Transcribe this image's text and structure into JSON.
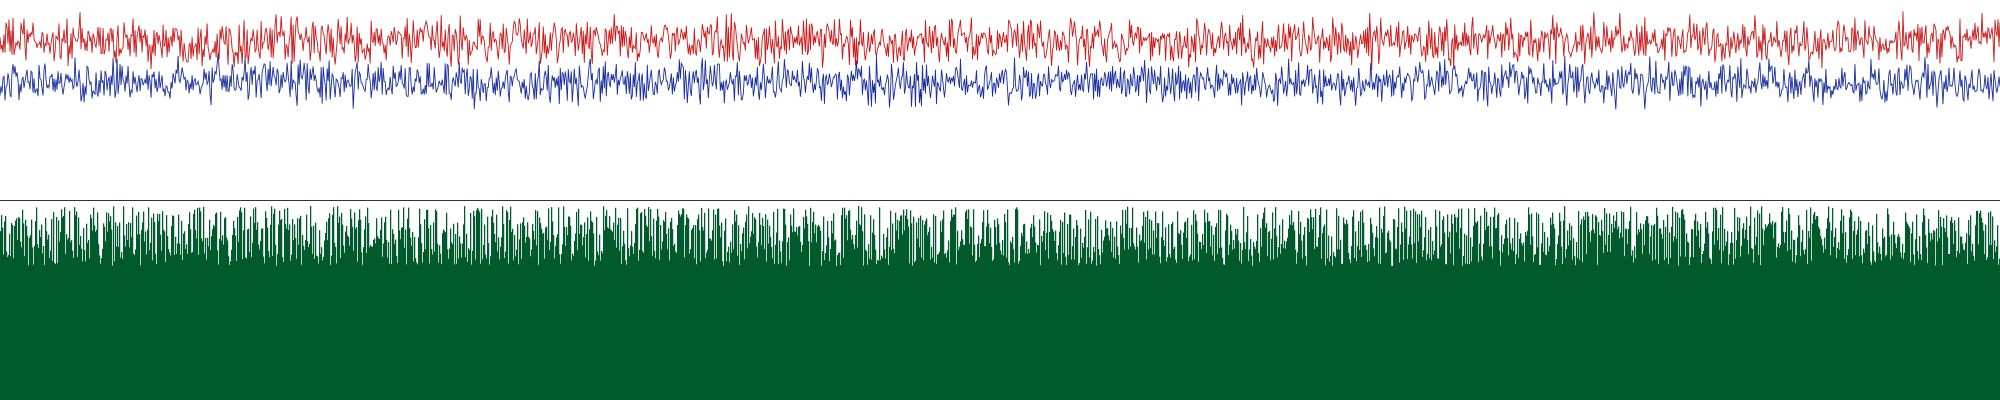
{
  "chart_data": [
    {
      "type": "line",
      "title": "",
      "xlabel": "",
      "ylabel": "",
      "grid": false,
      "legend": "none",
      "x_range": [
        0,
        1999
      ],
      "ylim": [
        -100,
        100
      ],
      "series": [
        {
          "color": "#cc1a1a",
          "mean": 45,
          "amplitude": 45,
          "samples": 2000
        },
        {
          "color": "#1a2fa0",
          "mean": -10,
          "amplitude": 40,
          "samples": 2000
        }
      ]
    },
    {
      "type": "bar",
      "title": "",
      "xlabel": "",
      "ylabel": "",
      "grid": false,
      "legend": "none",
      "x_range": [
        0,
        1999
      ],
      "ylim": [
        0,
        100
      ],
      "baseline_frame": true,
      "series": [
        {
          "color": "#005a2b",
          "mean": 70,
          "amplitude": 30,
          "samples": 2000
        }
      ]
    }
  ]
}
